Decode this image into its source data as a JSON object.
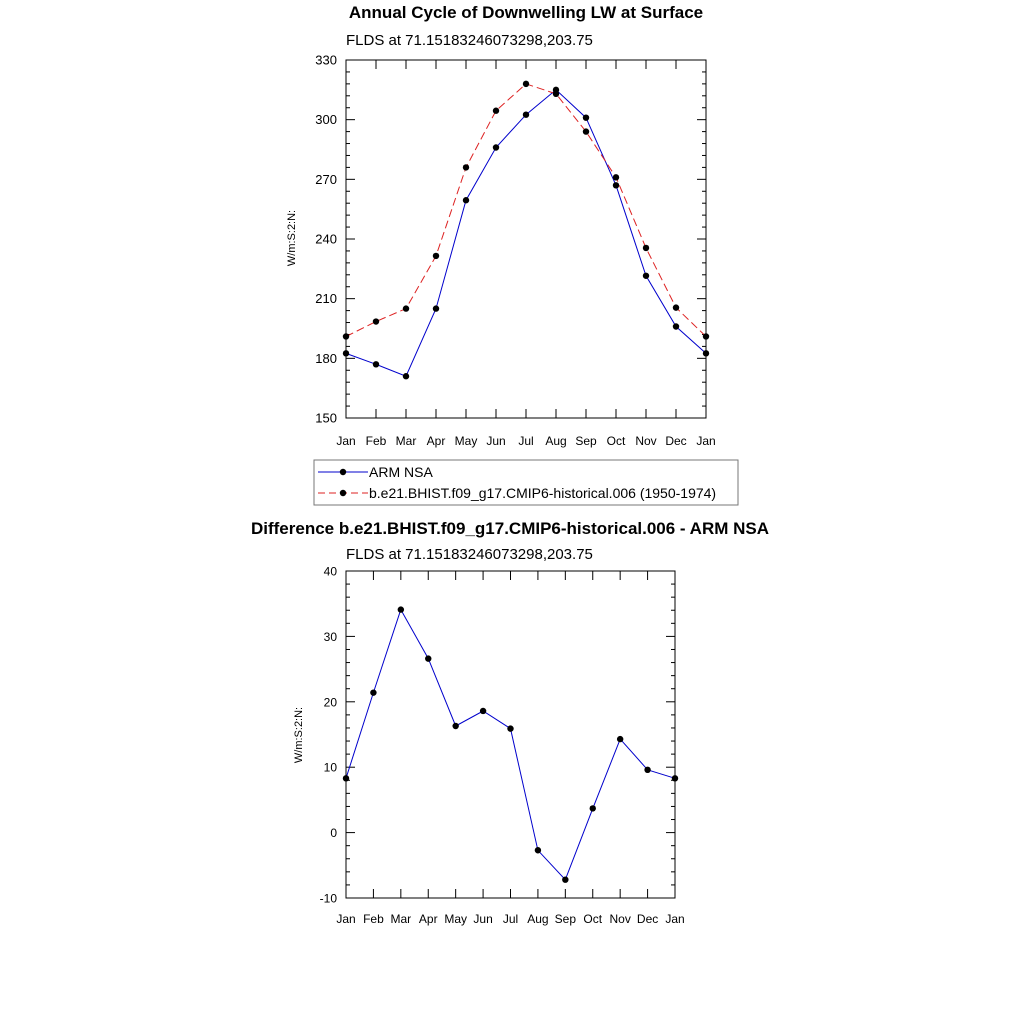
{
  "chart_data": [
    {
      "type": "line",
      "title": "Annual Cycle of Downwelling LW at Surface",
      "subtitle": "FLDS at 71.15183246073298,203.75",
      "ylabel": "W/m:S:2:N:",
      "categories": [
        "Jan",
        "Feb",
        "Mar",
        "Apr",
        "May",
        "Jun",
        "Jul",
        "Aug",
        "Sep",
        "Oct",
        "Nov",
        "Dec",
        "Jan"
      ],
      "ylim": [
        150,
        330
      ],
      "yticks": [
        150,
        180,
        210,
        240,
        270,
        300,
        330
      ],
      "legend_position": "bottom",
      "series": [
        {
          "name": "ARM NSA",
          "color": "#0000cc",
          "dash": "solid",
          "values": [
            182.5,
            177,
            171,
            205,
            259.5,
            286,
            302.5,
            315,
            301,
            267,
            221.5,
            196,
            182.5
          ]
        },
        {
          "name": "b.e21.BHIST.f09_g17.CMIP6-historical.006 (1950-1974)",
          "color": "#dd2222",
          "dash": "dashed",
          "values": [
            191,
            198.5,
            205,
            231.5,
            276,
            304.5,
            318,
            313,
            294,
            271,
            235.5,
            205.5,
            191
          ]
        }
      ]
    },
    {
      "type": "line",
      "title": "Difference b.e21.BHIST.f09_g17.CMIP6-historical.006 - ARM NSA",
      "subtitle": "FLDS at 71.15183246073298,203.75",
      "ylabel": "W/m:S:2:N:",
      "categories": [
        "Jan",
        "Feb",
        "Mar",
        "Apr",
        "May",
        "Jun",
        "Jul",
        "Aug",
        "Sep",
        "Oct",
        "Nov",
        "Dec",
        "Jan"
      ],
      "ylim": [
        -10,
        40
      ],
      "yticks": [
        -10,
        0,
        10,
        20,
        30,
        40
      ],
      "series": [
        {
          "color": "#0000cc",
          "dash": "solid",
          "values": [
            8.3,
            21.4,
            34.1,
            26.6,
            16.3,
            18.6,
            15.9,
            -2.7,
            -7.2,
            3.7,
            14.3,
            9.6,
            8.3
          ]
        }
      ]
    }
  ]
}
